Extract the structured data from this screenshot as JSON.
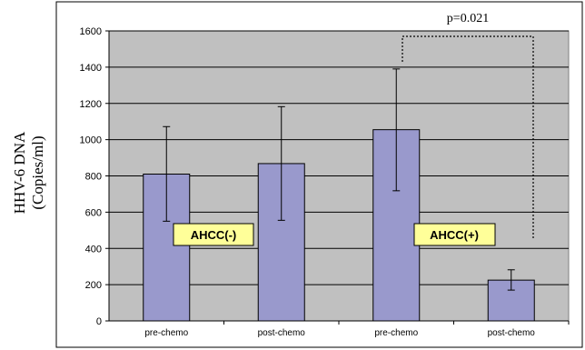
{
  "chart_data": {
    "type": "bar",
    "categories": [
      "pre-chemo",
      "post-chemo",
      "pre-chemo",
      "post-chemo"
    ],
    "values": [
      810,
      868,
      1055,
      225
    ],
    "error_upper": [
      1072,
      1182,
      1390,
      282
    ],
    "error_lower": [
      550,
      555,
      718,
      170
    ],
    "ylabel_line1": "HHV-6  DNA",
    "ylabel_line2": "(Copies/ml)",
    "ylim": [
      0,
      1600
    ],
    "yticks": [
      "0",
      "200",
      "400",
      "600",
      "800",
      "1000",
      "1200",
      "1400",
      "1600"
    ],
    "grid": true,
    "group_labels": [
      "AHCC(-)",
      "AHCC(+)"
    ],
    "annotation": "p=0.021"
  },
  "colors": {
    "bar_fill": "#9999CC",
    "plot_background": "#C0C0C0",
    "group_label_fill": "#FFFF99",
    "axis": "#000000"
  }
}
